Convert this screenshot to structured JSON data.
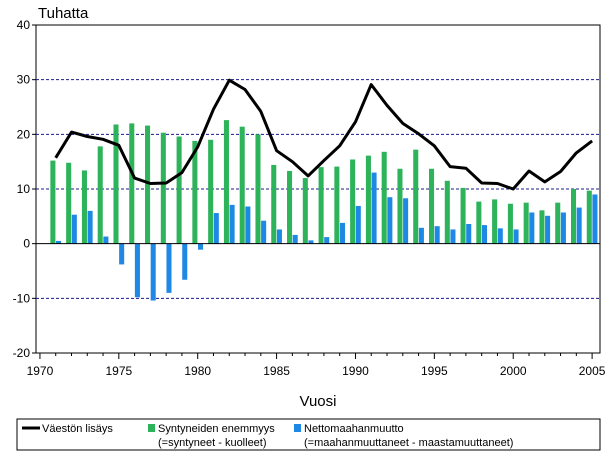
{
  "chart_data": {
    "type": "bar",
    "unit_label": "Tuhatta",
    "xlabel": "Vuosi",
    "ylim": [
      -20,
      40
    ],
    "y_ticks": [
      -20,
      -10,
      0,
      10,
      20,
      30,
      40
    ],
    "x_ticks": [
      1970,
      1975,
      1980,
      1985,
      1990,
      1995,
      2000,
      2005
    ],
    "xlim": [
      1969.75,
      2005.5
    ],
    "gridlines_at": [
      -10,
      10,
      20,
      30
    ],
    "x": [
      1971,
      1972,
      1973,
      1974,
      1975,
      1976,
      1977,
      1978,
      1979,
      1980,
      1981,
      1982,
      1983,
      1984,
      1985,
      1986,
      1987,
      1988,
      1989,
      1990,
      1991,
      1992,
      1993,
      1994,
      1995,
      1996,
      1997,
      1998,
      1999,
      2000,
      2001,
      2002,
      2003,
      2004,
      2005
    ],
    "series": [
      {
        "name": "Syntyneiden enemmyys",
        "name_line2": "(=syntyneet - kuolleet)",
        "kind": "bar",
        "color": "#2db35a",
        "values": [
          15.2,
          14.8,
          13.4,
          17.8,
          21.8,
          22.0,
          21.6,
          20.3,
          19.6,
          18.8,
          19.0,
          22.6,
          21.4,
          20.0,
          14.4,
          13.3,
          12.0,
          14.0,
          14.1,
          15.4,
          16.1,
          16.8,
          13.7,
          17.2,
          13.7,
          11.5,
          10.2,
          7.7,
          8.1,
          7.3,
          7.5,
          6.1,
          7.5,
          10.0,
          9.7
        ]
      },
      {
        "name": "Nettomaahanmuutto",
        "name_line2": "(=maahanmuuttaneet - maastamuuttaneet)",
        "kind": "bar",
        "color": "#1e88e5",
        "values": [
          0.5,
          5.3,
          6.0,
          1.3,
          -3.8,
          -9.8,
          -10.4,
          -9.0,
          -6.6,
          -1.1,
          5.6,
          7.1,
          6.8,
          4.2,
          2.6,
          1.6,
          0.6,
          1.2,
          3.8,
          6.9,
          13.0,
          8.5,
          8.3,
          2.9,
          3.2,
          2.6,
          3.6,
          3.4,
          2.8,
          2.6,
          5.7,
          5.1,
          5.7,
          6.6,
          9.0
        ]
      },
      {
        "name": "Väestön lisäys",
        "kind": "line",
        "color": "#000000",
        "values": [
          15.7,
          20.4,
          19.6,
          19.1,
          18.0,
          12.0,
          11.0,
          11.1,
          13.0,
          17.7,
          24.6,
          29.9,
          28.2,
          24.2,
          17.0,
          15.0,
          12.4,
          15.2,
          17.9,
          22.3,
          29.1,
          25.3,
          22.0,
          20.1,
          17.9,
          14.1,
          13.8,
          11.1,
          11.0,
          10.0,
          13.3,
          11.3,
          13.2,
          16.6,
          18.8
        ]
      }
    ]
  }
}
